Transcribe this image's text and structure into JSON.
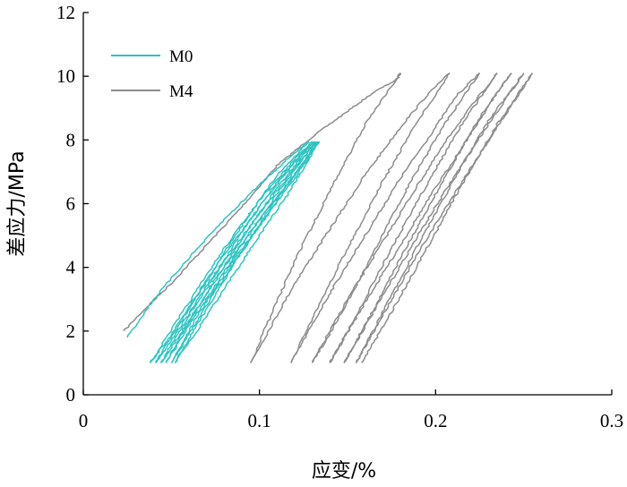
{
  "chart_data": {
    "type": "line",
    "title": "",
    "xlabel": "应变/%",
    "ylabel": "差应力/MPa",
    "xlim": [
      0,
      0.3
    ],
    "ylim": [
      0,
      12
    ],
    "x_ticks": [
      "0",
      "0.1",
      "0.2",
      "0.3"
    ],
    "y_ticks": [
      "0",
      "2",
      "4",
      "6",
      "8",
      "10",
      "12"
    ],
    "grid": false,
    "legend_position": "top-left",
    "series": [
      {
        "name": "M0",
        "color": "#2ec4c0",
        "cycles": [
          {
            "x": [
              0.025,
              0.04,
              0.06,
              0.08,
              0.1,
              0.12,
              0.128
            ],
            "y": [
              1.8,
              3.0,
              4.3,
              5.5,
              6.6,
              7.6,
              7.95
            ]
          },
          {
            "x": [
              0.128,
              0.11,
              0.09,
              0.07,
              0.05,
              0.038
            ],
            "y": [
              7.95,
              6.9,
              5.3,
              3.6,
              1.9,
              1.0
            ]
          },
          {
            "x": [
              0.038,
              0.06,
              0.08,
              0.1,
              0.12,
              0.13
            ],
            "y": [
              1.0,
              2.9,
              4.6,
              6.1,
              7.4,
              7.95
            ]
          },
          {
            "x": [
              0.13,
              0.11,
              0.09,
              0.07,
              0.05,
              0.041
            ],
            "y": [
              7.95,
              6.7,
              5.1,
              3.4,
              1.7,
              1.0
            ]
          },
          {
            "x": [
              0.041,
              0.06,
              0.08,
              0.1,
              0.12,
              0.131
            ],
            "y": [
              1.0,
              2.7,
              4.4,
              5.9,
              7.3,
              7.95
            ]
          },
          {
            "x": [
              0.131,
              0.11,
              0.09,
              0.07,
              0.055,
              0.044
            ],
            "y": [
              7.95,
              6.5,
              4.9,
              3.2,
              1.9,
              1.0
            ]
          },
          {
            "x": [
              0.044,
              0.06,
              0.08,
              0.1,
              0.12,
              0.132
            ],
            "y": [
              1.0,
              2.5,
              4.2,
              5.7,
              7.1,
              7.95
            ]
          },
          {
            "x": [
              0.132,
              0.11,
              0.09,
              0.07,
              0.058,
              0.047
            ],
            "y": [
              7.95,
              6.3,
              4.7,
              3.0,
              2.0,
              1.0
            ]
          },
          {
            "x": [
              0.047,
              0.06,
              0.08,
              0.1,
              0.12,
              0.133
            ],
            "y": [
              1.0,
              2.3,
              4.0,
              5.5,
              6.9,
              7.95
            ]
          },
          {
            "x": [
              0.133,
              0.11,
              0.09,
              0.072,
              0.06,
              0.05
            ],
            "y": [
              7.95,
              6.1,
              4.5,
              3.0,
              1.9,
              1.0
            ]
          },
          {
            "x": [
              0.05,
              0.065,
              0.085,
              0.1,
              0.12,
              0.134
            ],
            "y": [
              1.0,
              2.5,
              4.2,
              5.3,
              6.8,
              7.95
            ]
          },
          {
            "x": [
              0.134,
              0.115,
              0.095,
              0.075,
              0.062,
              0.052
            ],
            "y": [
              7.95,
              6.2,
              4.6,
              2.9,
              1.8,
              1.0
            ]
          },
          {
            "x": [
              0.052,
              0.07,
              0.09,
              0.11,
              0.125,
              0.134
            ],
            "y": [
              1.0,
              2.7,
              4.5,
              6.2,
              7.3,
              7.95
            ]
          }
        ]
      },
      {
        "name": "M4",
        "color": "#8c8c8c",
        "cycles": [
          {
            "x": [
              0.023,
              0.035,
              0.05,
              0.07,
              0.09,
              0.11,
              0.13,
              0.15,
              0.165,
              0.178,
              0.18
            ],
            "y": [
              2.0,
              2.7,
              3.5,
              4.7,
              5.9,
              7.2,
              8.1,
              8.9,
              9.5,
              9.9,
              10.1
            ]
          },
          {
            "x": [
              0.18,
              0.16,
              0.14,
              0.12,
              0.105,
              0.095
            ],
            "y": [
              10.1,
              8.5,
              6.4,
              4.2,
              2.3,
              1.0
            ]
          },
          {
            "x": [
              0.095,
              0.12,
              0.14,
              0.16,
              0.18,
              0.195,
              0.208
            ],
            "y": [
              1.0,
              3.5,
              5.2,
              6.9,
              8.4,
              9.4,
              10.1
            ]
          },
          {
            "x": [
              0.208,
              0.19,
              0.17,
              0.15,
              0.13,
              0.118
            ],
            "y": [
              10.1,
              8.6,
              6.7,
              4.6,
              2.4,
              1.0
            ]
          },
          {
            "x": [
              0.118,
              0.14,
              0.16,
              0.18,
              0.2,
              0.212,
              0.225
            ],
            "y": [
              1.0,
              3.2,
              5.0,
              6.8,
              8.4,
              9.4,
              10.1
            ]
          },
          {
            "x": [
              0.225,
              0.205,
              0.185,
              0.165,
              0.145,
              0.13
            ],
            "y": [
              10.1,
              8.5,
              6.6,
              4.5,
              2.4,
              1.0
            ]
          },
          {
            "x": [
              0.13,
              0.15,
              0.17,
              0.19,
              0.21,
              0.225,
              0.235
            ],
            "y": [
              1.0,
              3.0,
              4.8,
              6.6,
              8.3,
              9.4,
              10.1
            ]
          },
          {
            "x": [
              0.235,
              0.215,
              0.195,
              0.175,
              0.155,
              0.14
            ],
            "y": [
              10.1,
              8.5,
              6.6,
              4.6,
              2.5,
              1.0
            ]
          },
          {
            "x": [
              0.14,
              0.16,
              0.18,
              0.2,
              0.22,
              0.235,
              0.243
            ],
            "y": [
              1.0,
              2.9,
              4.7,
              6.5,
              8.2,
              9.5,
              10.1
            ]
          },
          {
            "x": [
              0.243,
              0.225,
              0.205,
              0.185,
              0.165,
              0.148
            ],
            "y": [
              10.1,
              8.7,
              6.8,
              4.8,
              2.7,
              1.0
            ]
          },
          {
            "x": [
              0.148,
              0.17,
              0.19,
              0.21,
              0.23,
              0.245,
              0.25
            ],
            "y": [
              1.0,
              3.1,
              5.0,
              6.8,
              8.5,
              9.7,
              10.1
            ]
          },
          {
            "x": [
              0.25,
              0.23,
              0.21,
              0.19,
              0.17,
              0.155
            ],
            "y": [
              10.1,
              8.6,
              6.7,
              4.7,
              2.6,
              1.0
            ]
          },
          {
            "x": [
              0.155,
              0.175,
              0.195,
              0.215,
              0.235,
              0.255
            ],
            "y": [
              1.0,
              3.0,
              4.9,
              6.7,
              8.4,
              10.1
            ]
          },
          {
            "x": [
              0.255,
              0.235,
              0.215,
              0.195,
              0.175,
              0.158
            ],
            "y": [
              10.1,
              8.5,
              6.6,
              4.6,
              2.6,
              1.0
            ]
          }
        ]
      }
    ]
  }
}
